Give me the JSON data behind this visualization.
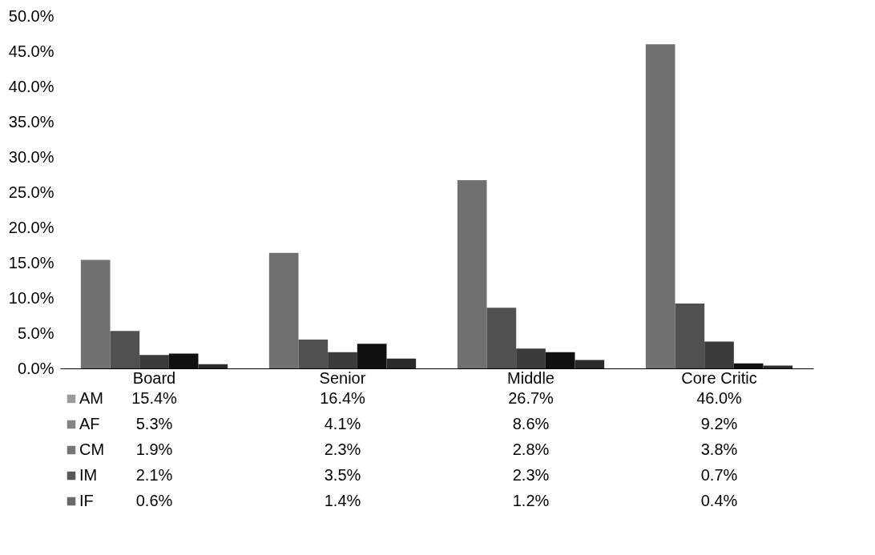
{
  "chart_data": {
    "type": "bar",
    "categories": [
      "Board",
      "Senior",
      "Middle",
      "Core Critic"
    ],
    "series": [
      {
        "name": "AM",
        "color": "#707070",
        "values": [
          15.4,
          16.4,
          26.7,
          46.0
        ],
        "value_labels": [
          "15.4%",
          "16.4%",
          "26.7%",
          "46.0%"
        ]
      },
      {
        "name": "AF",
        "color": "#505050",
        "values": [
          5.3,
          4.1,
          8.6,
          9.2
        ],
        "value_labels": [
          "5.3%",
          "4.1%",
          "8.6%",
          "9.2%"
        ]
      },
      {
        "name": "CM",
        "color": "#3a3a3a",
        "values": [
          1.9,
          2.3,
          2.8,
          3.8
        ],
        "value_labels": [
          "1.9%",
          "2.3%",
          "2.8%",
          "3.8%"
        ]
      },
      {
        "name": "IM",
        "color": "#111111",
        "values": [
          2.1,
          3.5,
          2.3,
          0.7
        ],
        "value_labels": [
          "2.1%",
          "3.5%",
          "2.3%",
          "0.7%"
        ]
      },
      {
        "name": "IF",
        "color": "#2a2a2a",
        "values": [
          0.6,
          1.4,
          1.2,
          0.4
        ],
        "value_labels": [
          "0.6%",
          "1.4%",
          "1.2%",
          "0.4%"
        ]
      }
    ],
    "ylim": [
      0,
      50
    ],
    "yticks": [
      {
        "value": 0,
        "label": "0.0%"
      },
      {
        "value": 5,
        "label": "5.0%"
      },
      {
        "value": 10,
        "label": "10.0%"
      },
      {
        "value": 15,
        "label": "15.0%"
      },
      {
        "value": 20,
        "label": "20.0%"
      },
      {
        "value": 25,
        "label": "25.0%"
      },
      {
        "value": 30,
        "label": "30.0%"
      },
      {
        "value": 35,
        "label": "35.0%"
      },
      {
        "value": 40,
        "label": "40.0%"
      },
      {
        "value": 45,
        "label": "45.0%"
      },
      {
        "value": 50,
        "label": "50.0%"
      }
    ],
    "grid": false,
    "legend": "bottom"
  }
}
